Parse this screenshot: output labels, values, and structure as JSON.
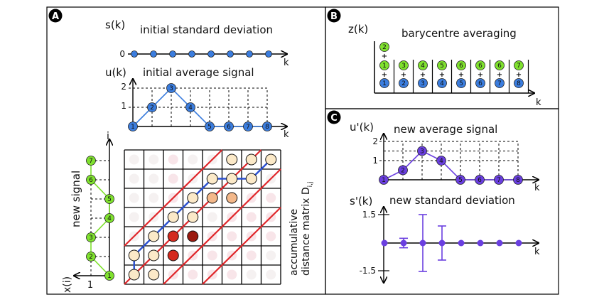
{
  "panels": {
    "A": {
      "badge": "A",
      "sk": {
        "ylabel": "s(k)",
        "title": "initial standard deviation",
        "zero_label": "0",
        "xlabel": "k",
        "values": [
          0,
          0,
          0,
          0,
          0,
          0,
          0,
          0
        ]
      },
      "uk": {
        "ylabel": "u(k)",
        "title": "initial average signal",
        "xlabel": "k",
        "y_ticks": [
          "1",
          "2"
        ],
        "points": [
          {
            "label": "1",
            "y": 0
          },
          {
            "label": "2",
            "y": 1
          },
          {
            "label": "3",
            "y": 2
          },
          {
            "label": "4",
            "y": 1
          },
          {
            "label": "5",
            "y": 0
          },
          {
            "label": "6",
            "y": 0
          },
          {
            "label": "7",
            "y": 0
          },
          {
            "label": "8",
            "y": 0
          }
        ]
      },
      "new_signal": {
        "label": "new signal",
        "axis_i": "i",
        "axis_x": "x(i)",
        "origin_tick": "1",
        "points": [
          {
            "label": "1",
            "x": 0
          },
          {
            "label": "2",
            "x": 1
          },
          {
            "label": "3",
            "x": 1
          },
          {
            "label": "4",
            "x": 0
          },
          {
            "label": "5",
            "x": 0
          },
          {
            "label": "6",
            "x": 1
          },
          {
            "label": "7",
            "x": 1
          }
        ]
      },
      "matrix": {
        "label_line1": "accumulative",
        "label_line2": "distance matrix D",
        "label_sub": "i,j",
        "rows": 7,
        "cols": 8
      }
    },
    "B": {
      "badge": "B",
      "ylabel": "z(k)",
      "title": "barycentre averaging",
      "xlabel": "k",
      "plus": "+",
      "columns": [
        {
          "green": [
            "2",
            "1"
          ],
          "blue": "1"
        },
        {
          "green": [
            "3"
          ],
          "blue": "2"
        },
        {
          "green": [
            "4"
          ],
          "blue": "3"
        },
        {
          "green": [
            "5"
          ],
          "blue": "4"
        },
        {
          "green": [
            "6"
          ],
          "blue": "5"
        },
        {
          "green": [
            "6"
          ],
          "blue": "6"
        },
        {
          "green": [
            "6"
          ],
          "blue": "7"
        },
        {
          "green": [
            "7"
          ],
          "blue": "8"
        }
      ]
    },
    "C": {
      "badge": "C",
      "uk": {
        "ylabel": "u'(k)",
        "title": "new average signal",
        "xlabel": "k",
        "y_ticks": [
          "1",
          "2"
        ],
        "points": [
          {
            "label": "1",
            "y": 0
          },
          {
            "label": "2",
            "y": 0.5
          },
          {
            "label": "3",
            "y": 1.5
          },
          {
            "label": "4",
            "y": 1
          },
          {
            "label": "5",
            "y": 0
          },
          {
            "label": "6",
            "y": 0
          },
          {
            "label": "7",
            "y": 0
          },
          {
            "label": "8",
            "y": 0
          }
        ]
      },
      "sk": {
        "ylabel": "s'(k)",
        "title": "new standard deviation",
        "xlabel": "k",
        "y_top": "1.5",
        "y_bottom": "-1.5",
        "errors": [
          0,
          0.25,
          1.5,
          0.9,
          0,
          0,
          0,
          0
        ]
      }
    }
  },
  "colors": {
    "blue": "#3b7dde",
    "green": "#7fe12e",
    "purple": "#6a3fe0",
    "red": "#e0262a",
    "path_blue": "#2a4fd1"
  }
}
